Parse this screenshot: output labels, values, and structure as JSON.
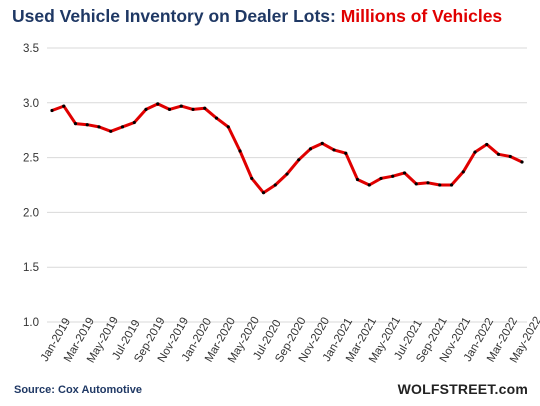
{
  "chart_data": {
    "type": "line",
    "title": "Used Vehicle Inventory on Dealer Lots:",
    "title_highlight": "Millions of Vehicles",
    "source": "Source: Cox Automotive",
    "brand": "WOLFSTREET.com",
    "ylim": [
      1.0,
      3.5
    ],
    "yticks": [
      "1.0",
      "1.5",
      "2.0",
      "2.5",
      "3.0",
      "3.5"
    ],
    "grid": true,
    "x_tick_labels": [
      "Jan-2019",
      "Mar-2019",
      "May-2019",
      "Jul-2019",
      "Sep-2019",
      "Nov-2019",
      "Jan-2020",
      "Mar-2020",
      "May-2020",
      "Jul-2020",
      "Sep-2020",
      "Nov-2020",
      "Jan-2021",
      "Mar-2021",
      "May-2021",
      "Jul-2021",
      "Sep-2021",
      "Nov-2021",
      "Jan-2022",
      "Mar-2022",
      "May-2022"
    ],
    "series": [
      {
        "color": "#e00000",
        "values": [
          2.93,
          2.97,
          2.81,
          2.8,
          2.78,
          2.74,
          2.78,
          2.82,
          2.94,
          2.99,
          2.94,
          2.97,
          2.94,
          2.95,
          2.86,
          2.78,
          2.56,
          2.31,
          2.18,
          2.25,
          2.35,
          2.48,
          2.58,
          2.63,
          2.57,
          2.54,
          2.3,
          2.25,
          2.31,
          2.33,
          2.36,
          2.26,
          2.27,
          2.25,
          2.25,
          2.37,
          2.55,
          2.62,
          2.53,
          2.51,
          2.46
        ]
      }
    ]
  }
}
